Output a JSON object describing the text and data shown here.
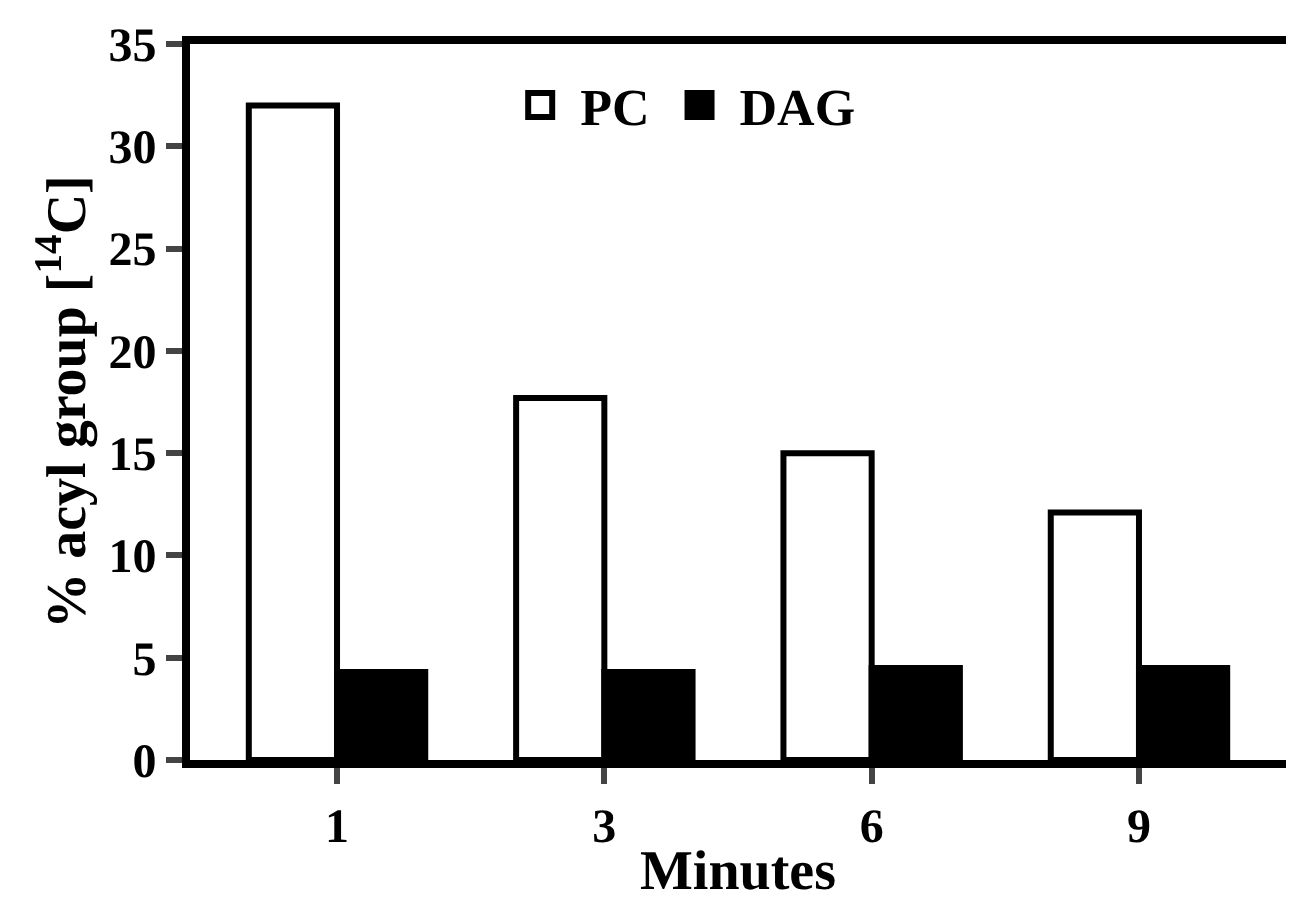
{
  "chart_data": {
    "type": "bar",
    "xlabel": "Minutes",
    "ylabel": "% acyl group [$^{14}$C]",
    "categories": [
      "1",
      "3",
      "6",
      "9"
    ],
    "series": [
      {
        "name": "PC",
        "color": "#ffffff",
        "values": [
          32,
          17.7,
          15,
          12.1
        ]
      },
      {
        "name": "DAG",
        "color": "#000000",
        "values": [
          4.3,
          4.3,
          4.5,
          4.5
        ]
      }
    ],
    "ylim": [
      0,
      35
    ],
    "yticks": [
      0,
      5,
      10,
      15,
      20,
      25,
      30,
      35
    ],
    "legend": "top"
  }
}
